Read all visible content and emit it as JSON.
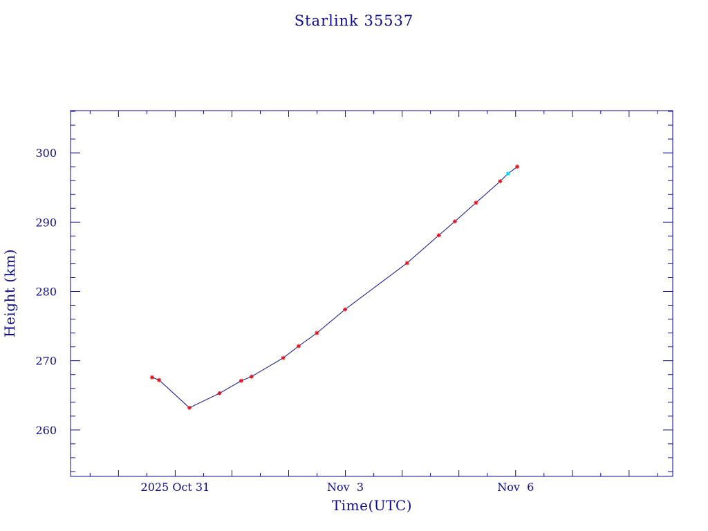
{
  "chart_data": {
    "type": "line",
    "title": "Starlink 35537",
    "xlabel": "Time(UTC)",
    "ylabel": "Height (km)",
    "x_tick_labels": [
      "2025 Oct 31",
      "Nov  3",
      "Nov  6"
    ],
    "x_tick_dates": [
      "2025-10-31T00:00Z",
      "2025-11-03T00:00Z",
      "2025-11-06T00:00Z"
    ],
    "xlim": [
      "2025-10-29T03:43Z",
      "2025-11-08T18:28Z"
    ],
    "y_ticks": [
      260,
      270,
      280,
      290,
      300
    ],
    "ylim": [
      253.3,
      306.1
    ],
    "grid": false,
    "colors": {
      "axis": "#0a0a8c",
      "line": "#0a0a8c",
      "marker": "#e8101a",
      "highlight": "#00d8e8"
    },
    "series": [
      {
        "points": [
          {
            "x": "2025-10-30T14:12Z",
            "y": 267.6
          },
          {
            "x": "2025-10-30T17:12Z",
            "y": 267.2
          },
          {
            "x": "2025-10-31T06:00Z",
            "y": 263.2
          },
          {
            "x": "2025-10-31T18:45Z",
            "y": 265.3
          },
          {
            "x": "2025-11-01T03:55Z",
            "y": 267.1
          },
          {
            "x": "2025-11-01T08:16Z",
            "y": 267.7
          },
          {
            "x": "2025-11-01T21:41Z",
            "y": 270.4
          },
          {
            "x": "2025-11-02T04:13Z",
            "y": 272.1
          },
          {
            "x": "2025-11-02T11:56Z",
            "y": 274.0
          },
          {
            "x": "2025-11-02T23:53Z",
            "y": 277.4
          },
          {
            "x": "2025-11-04T02:06Z",
            "y": 284.1
          },
          {
            "x": "2025-11-04T15:31Z",
            "y": 288.1
          },
          {
            "x": "2025-11-04T22:18Z",
            "y": 290.1
          },
          {
            "x": "2025-11-05T07:14Z",
            "y": 292.8
          },
          {
            "x": "2025-11-05T17:27Z",
            "y": 295.9
          },
          {
            "x": "2025-11-05T20:45Z",
            "y": 297.0,
            "highlight": true
          },
          {
            "x": "2025-11-06T00:42Z",
            "y": 298.0
          }
        ]
      }
    ]
  }
}
